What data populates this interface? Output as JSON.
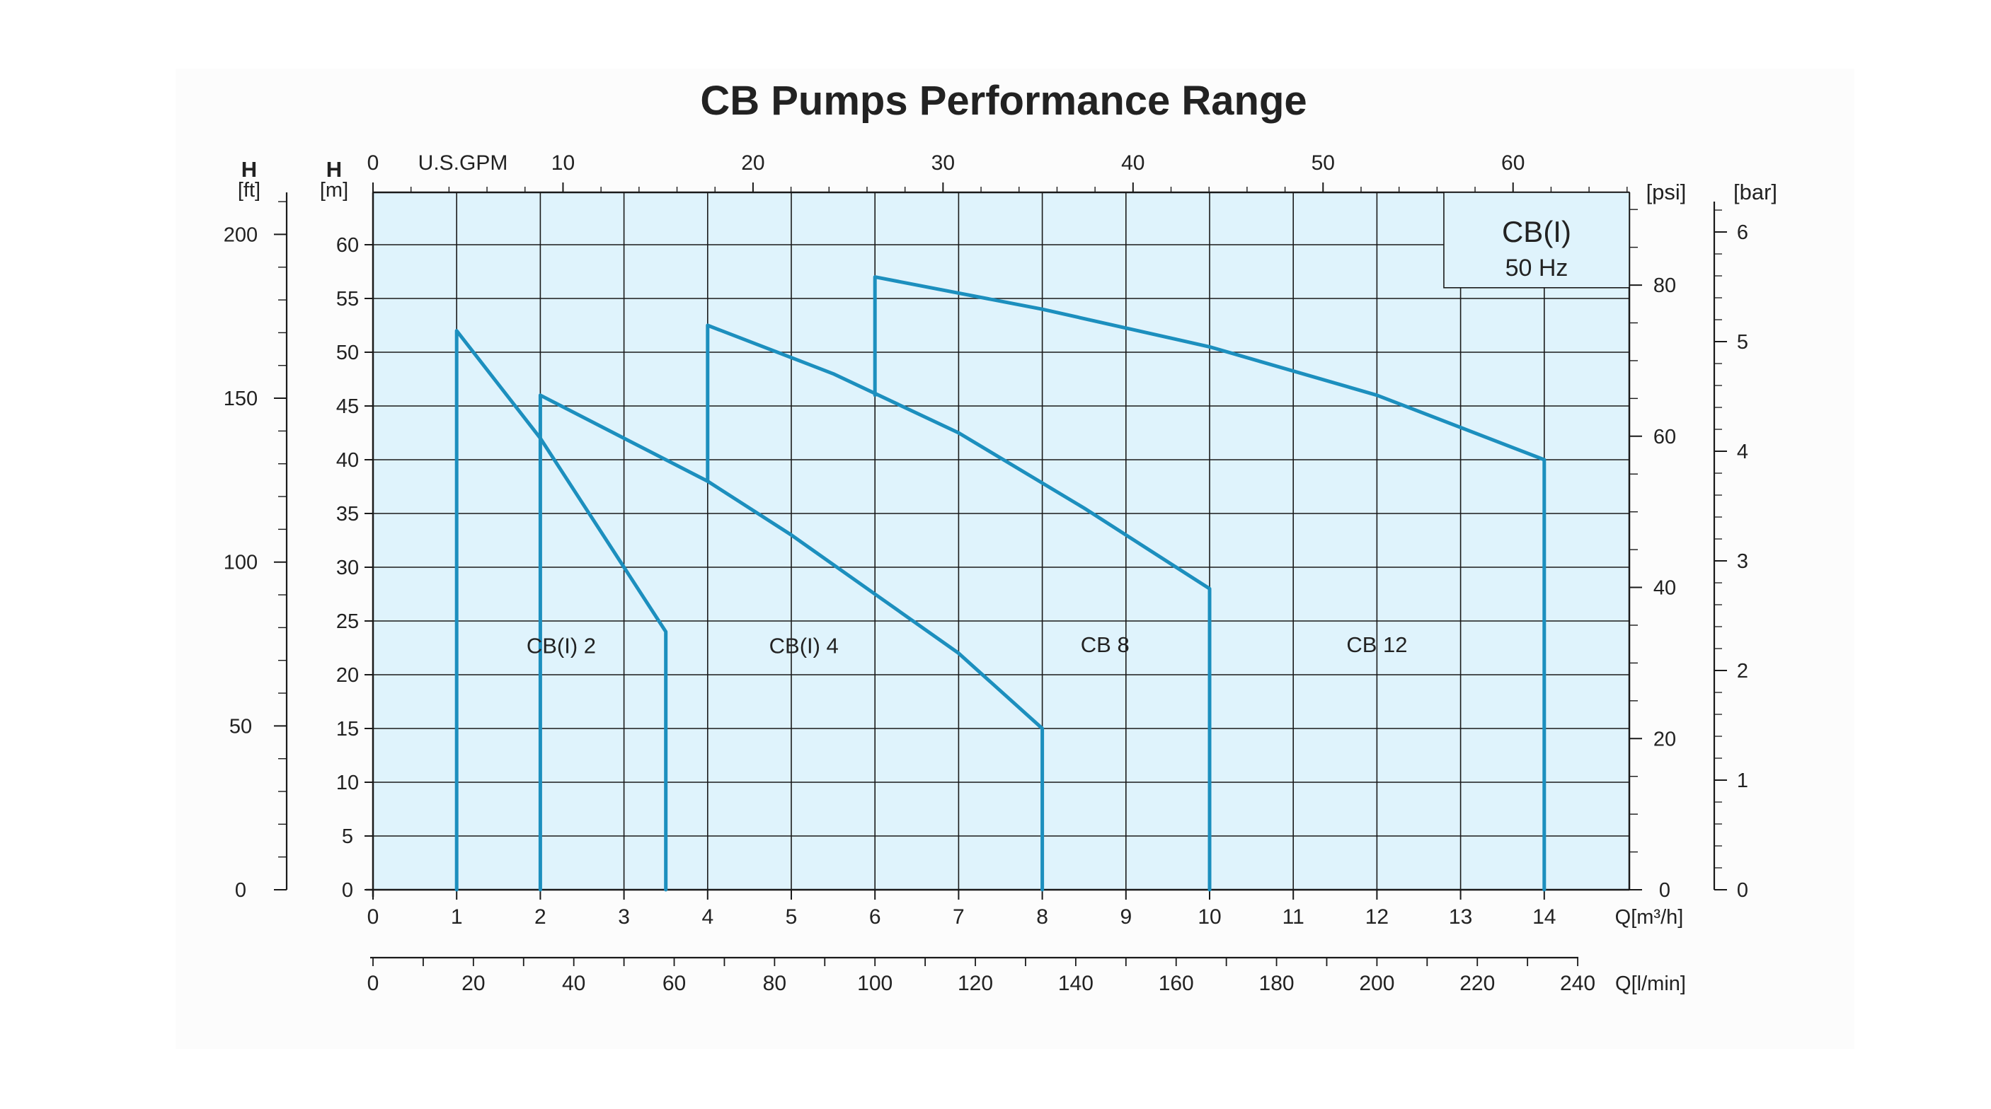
{
  "chart_data": {
    "type": "line",
    "title": "CB Pumps Performance Range",
    "xlabel": "Q[m³/h]",
    "ylabel": "H [m]",
    "xlim": [
      0,
      15
    ],
    "ylim": [
      0,
      65
    ],
    "x_ticks": [
      "0",
      "1",
      "2",
      "3",
      "4",
      "5",
      "6",
      "7",
      "8",
      "9",
      "10",
      "11",
      "12",
      "13",
      "14"
    ],
    "y_ticks": [
      "0",
      "5",
      "10",
      "15",
      "20",
      "25",
      "30",
      "35",
      "40",
      "45",
      "50",
      "55",
      "60"
    ],
    "grid": true,
    "secondary_axes": {
      "top": {
        "label": "U.S.GPM",
        "ticks": [
          "0",
          "10",
          "20",
          "30",
          "40",
          "50",
          "60"
        ]
      },
      "bottom2": {
        "label": "Q[l/min]",
        "ticks": [
          "0",
          "20",
          "40",
          "60",
          "80",
          "100",
          "120",
          "140",
          "160",
          "180",
          "200",
          "220",
          "240"
        ]
      },
      "left_ft": {
        "label": "H",
        "unit": "[ft]",
        "ticks": [
          "0",
          "50",
          "100",
          "150",
          "200"
        ]
      },
      "left_m": {
        "label": "H",
        "unit": "[m]"
      },
      "right_psi": {
        "label": "[psi]",
        "ticks": [
          "0",
          "20",
          "40",
          "60",
          "80"
        ]
      },
      "right_bar": {
        "label": "[bar]",
        "ticks": [
          "0",
          "1",
          "2",
          "3",
          "4",
          "5",
          "6"
        ]
      }
    },
    "legend_box": {
      "title": "CB(I)",
      "subtitle": "50 Hz"
    },
    "series": [
      {
        "name": "CB(I) 2",
        "x": [
          1,
          1,
          1.5,
          2.0,
          2.5,
          3.0,
          3.5,
          3.5
        ],
        "y": [
          0,
          52,
          47,
          42,
          36,
          30,
          24,
          0
        ]
      },
      {
        "name": "CB(I) 4",
        "x": [
          2,
          2,
          3,
          4,
          5,
          6,
          7,
          8,
          8
        ],
        "y": [
          0,
          46,
          42,
          38,
          33,
          27.5,
          22,
          15,
          0
        ]
      },
      {
        "name": "CB 8",
        "x": [
          4,
          4,
          5.5,
          7,
          8.5,
          10,
          10
        ],
        "y": [
          38,
          52.5,
          48,
          42.5,
          35.5,
          28,
          0
        ]
      },
      {
        "name": "CB 12",
        "x": [
          6,
          6,
          8,
          10,
          12,
          14,
          14
        ],
        "y": [
          46,
          57,
          54,
          50.5,
          46,
          40,
          0
        ]
      }
    ],
    "labels": [
      "CB(I) 2",
      "CB(I) 4",
      "CB 8",
      "CB 12"
    ],
    "colors": {
      "curve": "#1c8fbe",
      "plot_bg": "#dff3fc",
      "title": "#0b78b6",
      "grid": "#1a1a1a"
    }
  }
}
